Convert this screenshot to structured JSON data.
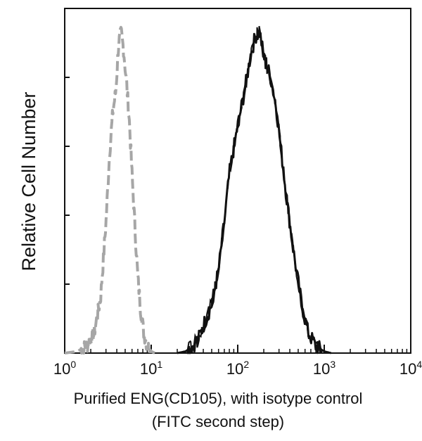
{
  "chart_data": {
    "type": "line",
    "title": "",
    "ylabel": "Relative Cell Number",
    "xlabel_lines": [
      "Purified ENG(CD105), with isotype control",
      "(FITC second step)"
    ],
    "x_scale": "log",
    "xlim": [
      1,
      10000
    ],
    "ylim": [
      0,
      100
    ],
    "x_ticks": [
      {
        "base": "10",
        "exp": "0",
        "value": 1
      },
      {
        "base": "10",
        "exp": "1",
        "value": 10
      },
      {
        "base": "10",
        "exp": "2",
        "value": 100
      },
      {
        "base": "10",
        "exp": "3",
        "value": 1000
      },
      {
        "base": "10",
        "exp": "4",
        "value": 10000
      }
    ],
    "y_ticks": [
      0,
      20,
      40,
      60,
      80,
      100
    ],
    "grid": false,
    "legend": "none",
    "series": [
      {
        "style": "dashed",
        "color": "#a6a6a6",
        "x": [
          1.0,
          1.4,
          1.8,
          2.2,
          2.6,
          3.0,
          3.3,
          3.6,
          3.9,
          4.2,
          4.5,
          4.8,
          5.2,
          5.6,
          6.0,
          6.5,
          7.0,
          7.6,
          8.2,
          9.0,
          10.0,
          11.0
        ],
        "y": [
          0,
          0.5,
          2,
          6,
          16,
          38,
          58,
          70,
          76,
          90,
          93,
          88,
          78,
          67,
          52,
          36,
          22,
          12,
          6,
          2,
          0.5,
          0
        ]
      },
      {
        "style": "solid",
        "color": "#111111",
        "x": [
          20,
          25,
          30,
          35,
          40,
          50,
          60,
          70,
          80,
          100,
          120,
          140,
          160,
          180,
          200,
          240,
          280,
          320,
          380,
          450,
          550,
          650,
          800,
          1000,
          1200
        ],
        "y": [
          0,
          0.5,
          2,
          4,
          8,
          14,
          24,
          38,
          52,
          66,
          76,
          86,
          92,
          93,
          86,
          80,
          71,
          58,
          42,
          28,
          14,
          6,
          2,
          0.5,
          0
        ]
      }
    ]
  }
}
